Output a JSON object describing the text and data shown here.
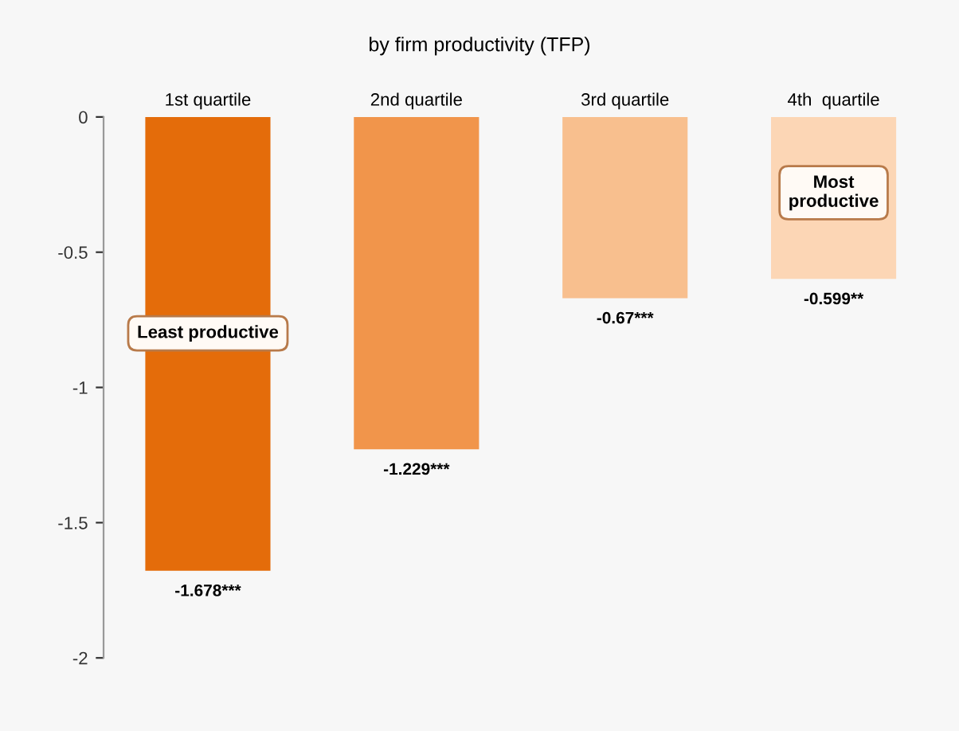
{
  "chart_data": {
    "type": "bar",
    "title": "by firm productivity (TFP)",
    "categories": [
      "1st quartile",
      "2nd quartile",
      "3rd quartile",
      "4th  quartile"
    ],
    "values": [
      -1.678,
      -1.229,
      -0.67,
      -0.599
    ],
    "colors": [
      "#e46c0a",
      "#f1954b",
      "#f8bf8e",
      "#fcd6b5"
    ],
    "value_labels": [
      "-1.678***",
      "-1.229***",
      "-0.67***",
      "-0.599**"
    ],
    "ylim": [
      -2,
      0
    ],
    "yticks": [
      -2,
      -1.5,
      -1,
      -0.5,
      0
    ],
    "grid": false,
    "legend": false,
    "annotations": [
      "Least productive",
      "Most\nproductive"
    ]
  }
}
